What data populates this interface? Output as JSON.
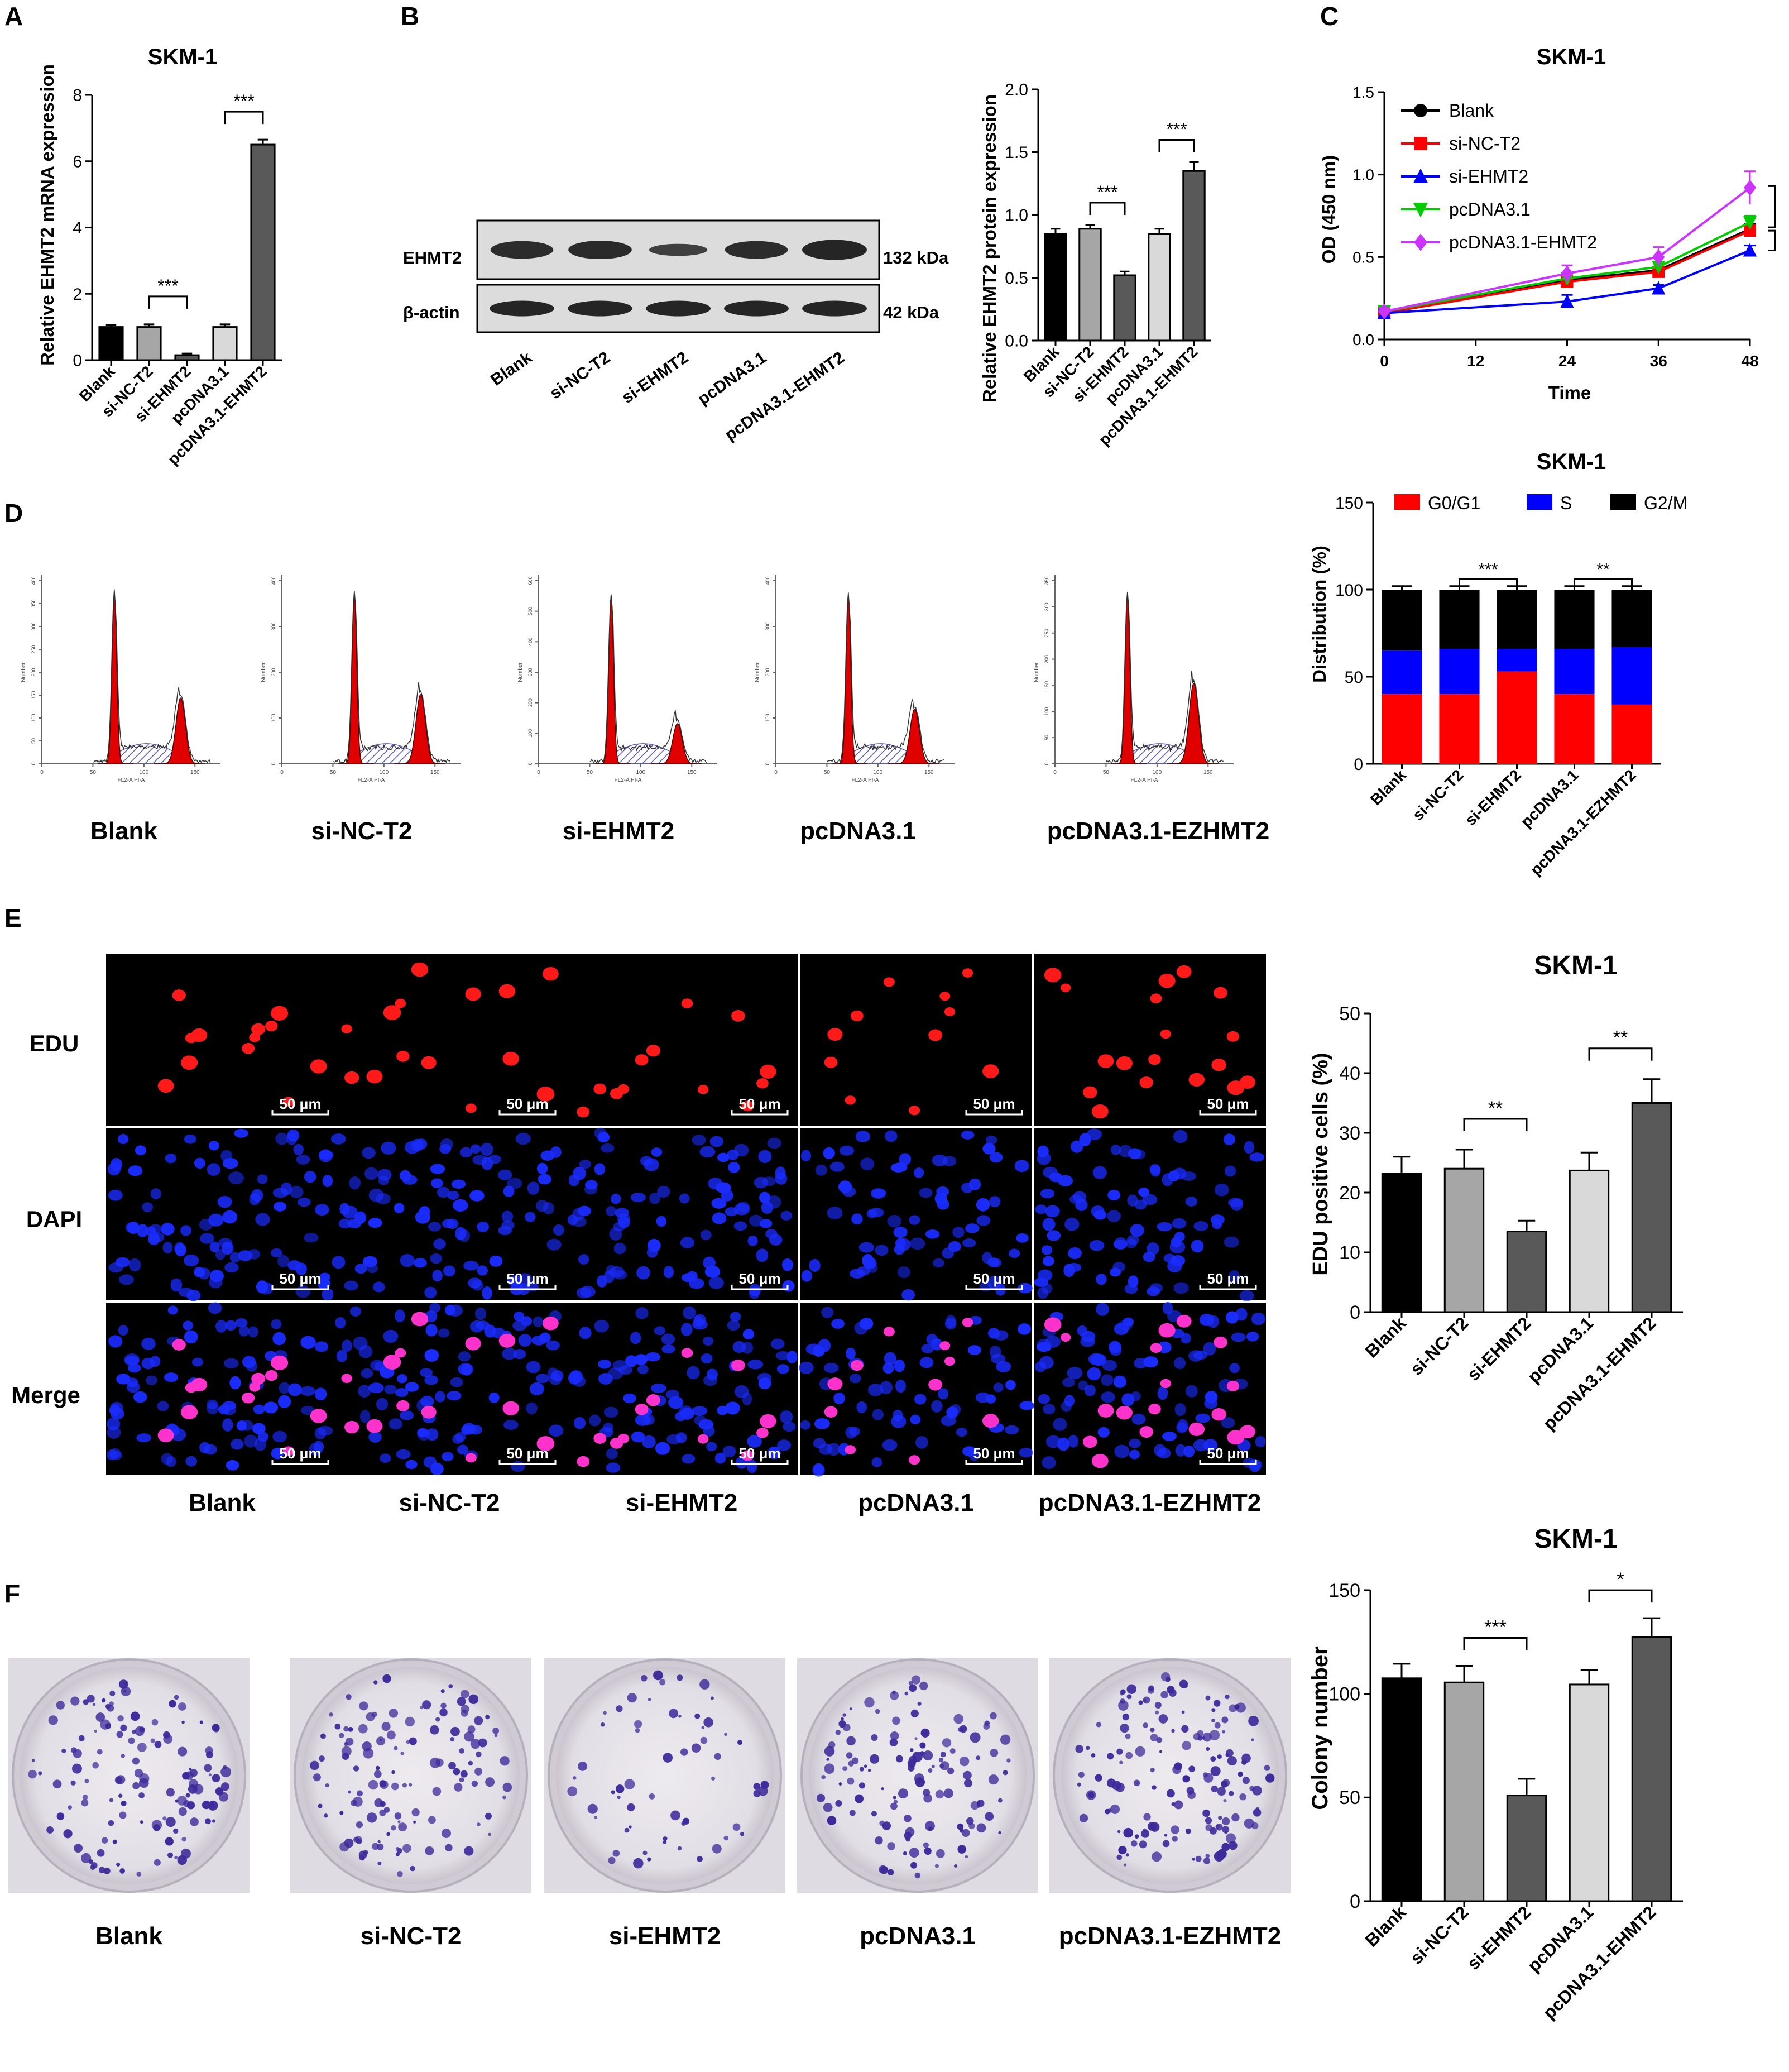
{
  "panel_letters": [
    "A",
    "B",
    "C",
    "D",
    "E",
    "F"
  ],
  "groups_mrna": [
    "Blank",
    "si-NC-T2",
    "si-EHMT2",
    "pcDNA3.1",
    "pcDNA3.1-EHMT2"
  ],
  "colors": {
    "bar": [
      "#000000",
      "#a6a6a6",
      "#595959",
      "#d9d9d9",
      "#595959"
    ],
    "line": [
      "#000000",
      "#ff0000",
      "#0000ff",
      "#00cc00",
      "#cc33ff"
    ],
    "g0g1": "#ff0000",
    "s": "#0000ff",
    "g2m": "#000000",
    "flow_fill": "#e00000",
    "flow_hatch": "#5a5ab4",
    "edu": "#ff1a1a",
    "dapi": "#1a2cff",
    "merge_pink": "#ff33cc",
    "colony": "#3d2a9a",
    "dish": "#e7e3ea"
  },
  "panelA": {
    "letter": "A",
    "chart_data": {
      "type": "bar",
      "title": "SKM-1",
      "ylabel": "Relative EHMT2 mRNA expression",
      "categories": [
        "Blank",
        "si-NC-T2",
        "si-EHMT2",
        "pcDNA3.1",
        "pcDNA3.1-EHMT2"
      ],
      "values": [
        1.0,
        1.0,
        0.15,
        1.0,
        6.5
      ],
      "errors": [
        0.06,
        0.08,
        0.05,
        0.08,
        0.15
      ],
      "ylim": [
        0,
        8
      ],
      "yticks": [
        "0",
        "2",
        "4",
        "6",
        "8"
      ],
      "sig": [
        {
          "from": 1,
          "to": 2,
          "label": "***"
        },
        {
          "from": 3,
          "to": 4,
          "label": "***"
        }
      ]
    }
  },
  "panelB": {
    "letter": "B",
    "blot": {
      "row_labels": [
        "EHMT2",
        "β-actin"
      ],
      "kda": [
        "132 kDa",
        "42 kDa"
      ],
      "lanes": [
        "Blank",
        "si-NC-T2",
        "si-EHMT2",
        "pcDNA3.1",
        "pcDNA3.1-EHMT2"
      ],
      "ehmt2_intensity": [
        0.88,
        0.92,
        0.6,
        0.88,
        1.0
      ]
    },
    "chart_data": {
      "type": "bar",
      "title": "",
      "ylabel": "Relative EHMT2 protein expression",
      "categories": [
        "Blank",
        "si-NC-T2",
        "si-EHMT2",
        "pcDNA3.1",
        "pcDNA3.1-EHMT2"
      ],
      "values": [
        0.85,
        0.89,
        0.52,
        0.85,
        1.35
      ],
      "errors": [
        0.04,
        0.03,
        0.03,
        0.04,
        0.07
      ],
      "ylim": [
        0,
        2.0
      ],
      "yticks": [
        "0.0",
        "0.5",
        "1.0",
        "1.5",
        "2.0"
      ],
      "sig": [
        {
          "from": 1,
          "to": 2,
          "label": "***"
        },
        {
          "from": 3,
          "to": 4,
          "label": "***"
        }
      ]
    }
  },
  "panelC": {
    "letter": "C",
    "chart_data": {
      "type": "line",
      "title": "SKM-1",
      "xlabel": "Time",
      "ylabel": "OD (450 nm)",
      "x": [
        0,
        24,
        36,
        48
      ],
      "xlim": [
        0,
        48
      ],
      "xticks": [
        "0",
        "12",
        "24",
        "36",
        "48"
      ],
      "ylim": [
        0,
        1.5
      ],
      "yticks": [
        "0.0",
        "0.5",
        "1.0",
        "1.5"
      ],
      "legend_position": "top-left",
      "series": [
        {
          "name": "Blank",
          "marker": "circle",
          "values": [
            0.16,
            0.36,
            0.42,
            0.67
          ],
          "errors": [
            0.02,
            0.03,
            0.02,
            0.03
          ]
        },
        {
          "name": "si-NC-T2",
          "marker": "square",
          "values": [
            0.16,
            0.35,
            0.41,
            0.66
          ],
          "errors": [
            0.02,
            0.03,
            0.02,
            0.03
          ]
        },
        {
          "name": "si-EHMT2",
          "marker": "triangle-up",
          "values": [
            0.16,
            0.23,
            0.31,
            0.54
          ],
          "errors": [
            0.02,
            0.04,
            0.02,
            0.03
          ]
        },
        {
          "name": "pcDNA3.1",
          "marker": "triangle-down",
          "values": [
            0.17,
            0.37,
            0.44,
            0.71
          ],
          "errors": [
            0.02,
            0.03,
            0.02,
            0.04
          ]
        },
        {
          "name": "pcDNA3.1-EHMT2",
          "marker": "diamond",
          "values": [
            0.17,
            0.4,
            0.5,
            0.92
          ],
          "errors": [
            0.02,
            0.05,
            0.06,
            0.1
          ]
        }
      ],
      "sig": [
        "***",
        "**"
      ]
    }
  },
  "panelD": {
    "letter": "D",
    "flow_labels": [
      "Blank",
      "si-NC-T2",
      "si-EHMT2",
      "pcDNA3.1",
      "pcDNA3.1-EZHMT2"
    ],
    "flow_xlabel": "FL2-A PI-A",
    "flow_ylabel": "Number",
    "flow_xticks": [
      "0",
      "50",
      "100",
      "150"
    ],
    "flow_yticks": [
      [
        "0",
        "50",
        "100",
        "150",
        "200",
        "250",
        "300",
        "350",
        "400"
      ],
      [
        "0",
        "100",
        "200",
        "300",
        "400"
      ],
      [
        "0",
        "100",
        "200",
        "300",
        "400",
        "500",
        "600"
      ],
      [
        "0",
        "100",
        "200",
        "300",
        "400"
      ],
      [
        "0",
        "50",
        "100",
        "150",
        "200",
        "250",
        "300",
        "350"
      ]
    ],
    "flow_peaks": [
      {
        "g1": 0.93,
        "g2": 0.36
      },
      {
        "g1": 0.93,
        "g2": 0.38
      },
      {
        "g1": 0.92,
        "g2": 0.22
      },
      {
        "g1": 0.92,
        "g2": 0.3
      },
      {
        "g1": 0.93,
        "g2": 0.44
      }
    ],
    "chart_data": {
      "type": "bar",
      "stacked": true,
      "title": "SKM-1",
      "ylabel": "Distribution (%)",
      "categories": [
        "Blank",
        "si-NC-T2",
        "si-EHMT2",
        "pcDNA3.1",
        "pcDNA3.1-EZHMT2"
      ],
      "series": [
        {
          "name": "G0/G1",
          "values": [
            40,
            40,
            53,
            40,
            34
          ],
          "errors": [
            2,
            2,
            2,
            2,
            2
          ]
        },
        {
          "name": "S",
          "values": [
            25,
            26,
            13,
            26,
            33
          ],
          "errors": [
            2,
            2,
            2,
            2,
            2
          ]
        },
        {
          "name": "G2/M",
          "values": [
            35,
            34,
            34,
            34,
            33
          ],
          "errors": [
            2,
            2,
            2,
            2,
            2
          ]
        }
      ],
      "ylim": [
        0,
        150
      ],
      "yticks": [
        "0",
        "50",
        "100",
        "150"
      ],
      "sig": [
        {
          "from": 1,
          "to": 2,
          "label": "***"
        },
        {
          "from": 3,
          "to": 4,
          "label": "**"
        }
      ]
    }
  },
  "panelE": {
    "letter": "E",
    "row_labels": [
      "EDU",
      "DAPI",
      "Merge"
    ],
    "col_labels": [
      "Blank",
      "si-NC-T2",
      "si-EHMT2",
      "pcDNA3.1",
      "pcDNA3.1-EZHMT2"
    ],
    "scale_bar": "50 μm",
    "chart_data": {
      "type": "bar",
      "title": "SKM-1",
      "ylabel": "EDU positive cells (%)",
      "categories": [
        "Blank",
        "si-NC-T2",
        "si-EHMT2",
        "pcDNA3.1",
        "pcDNA3.1-EHMT2"
      ],
      "values": [
        23.2,
        24.0,
        13.5,
        23.7,
        35.0
      ],
      "errors": [
        2.8,
        3.2,
        1.8,
        3.0,
        4.0
      ],
      "ylim": [
        0,
        50
      ],
      "yticks": [
        "0",
        "10",
        "20",
        "30",
        "40",
        "50"
      ],
      "sig": [
        {
          "from": 1,
          "to": 2,
          "label": "**"
        },
        {
          "from": 3,
          "to": 4,
          "label": "**"
        }
      ]
    }
  },
  "panelF": {
    "letter": "F",
    "dish_labels": [
      "Blank",
      "si-NC-T2",
      "si-EHMT2",
      "pcDNA3.1",
      "pcDNA3.1-EZHMT2"
    ],
    "colony_density": [
      1.0,
      1.0,
      0.45,
      1.0,
      1.2
    ],
    "chart_data": {
      "type": "bar",
      "title": "SKM-1",
      "ylabel": "Colony number",
      "categories": [
        "Blank",
        "si-NC-T2",
        "si-EHMT2",
        "pcDNA3.1",
        "pcDNA3.1-EHMT2"
      ],
      "values": [
        107.5,
        105.5,
        51,
        104.5,
        127.5
      ],
      "errors": [
        7,
        8,
        8,
        7,
        9
      ],
      "ylim": [
        0,
        150
      ],
      "yticks": [
        "0",
        "50",
        "100",
        "150"
      ],
      "sig": [
        {
          "from": 1,
          "to": 2,
          "label": "***"
        },
        {
          "from": 3,
          "to": 4,
          "label": "*"
        }
      ]
    }
  }
}
